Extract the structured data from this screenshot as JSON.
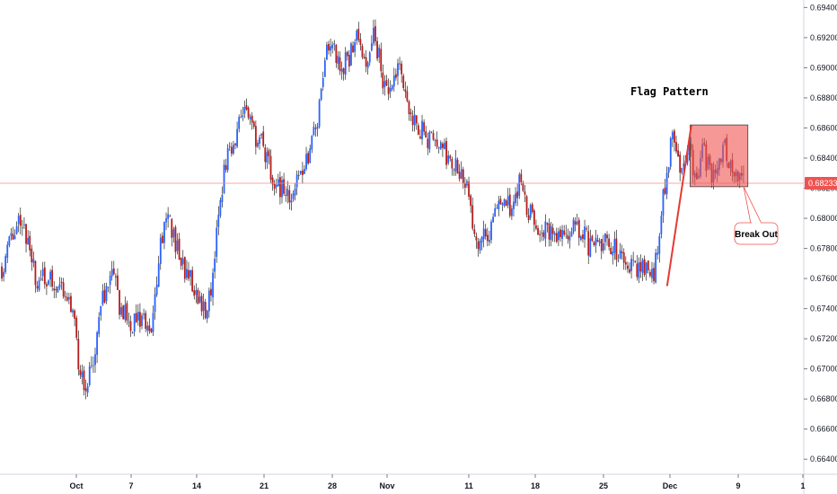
{
  "chart_data": {
    "type": "candlestick",
    "ylim": [
      0.663,
      0.6945
    ],
    "y_ticks": [
      "0.69400",
      "0.69200",
      "0.69000",
      "0.68800",
      "0.68600",
      "0.68400",
      "0.68200",
      "0.68000",
      "0.67800",
      "0.67600",
      "0.67400",
      "0.67200",
      "0.67000",
      "0.66800",
      "0.66600",
      "0.66400"
    ],
    "x_ticks": [
      "Oct",
      "7",
      "14",
      "21",
      "28",
      "Nov",
      "11",
      "18",
      "25",
      "Dec",
      "9",
      "1"
    ],
    "current_price": "0.68233",
    "colors": {
      "up": "#2962ff",
      "down": "#b71c1c",
      "price_line": "#f28b82",
      "price_tag": "#ef5350",
      "flag_fill": "#ef5350",
      "trend_line": "#e53935"
    },
    "trend_path": [
      {
        "t": 0.0,
        "v": 0.6768
      },
      {
        "t": 0.03,
        "v": 0.679
      },
      {
        "t": 0.05,
        "v": 0.6803
      },
      {
        "t": 0.07,
        "v": 0.6782
      },
      {
        "t": 0.09,
        "v": 0.676
      },
      {
        "t": 0.12,
        "v": 0.6758
      },
      {
        "t": 0.16,
        "v": 0.6755
      },
      {
        "t": 0.17,
        "v": 0.6752
      },
      {
        "t": 0.19,
        "v": 0.674
      },
      {
        "t": 0.21,
        "v": 0.6695
      },
      {
        "t": 0.235,
        "v": 0.6692
      },
      {
        "t": 0.27,
        "v": 0.6745
      },
      {
        "t": 0.3,
        "v": 0.6762
      },
      {
        "t": 0.32,
        "v": 0.674
      },
      {
        "t": 0.35,
        "v": 0.673
      },
      {
        "t": 0.37,
        "v": 0.6735
      },
      {
        "t": 0.4,
        "v": 0.672
      },
      {
        "t": 0.42,
        "v": 0.677
      },
      {
        "t": 0.44,
        "v": 0.6805
      },
      {
        "t": 0.46,
        "v": 0.6792
      },
      {
        "t": 0.49,
        "v": 0.6765
      },
      {
        "t": 0.51,
        "v": 0.676
      },
      {
        "t": 0.53,
        "v": 0.6745
      },
      {
        "t": 0.555,
        "v": 0.674
      },
      {
        "t": 0.57,
        "v": 0.677
      },
      {
        "t": 0.585,
        "v": 0.681
      },
      {
        "t": 0.6,
        "v": 0.6835
      },
      {
        "t": 0.63,
        "v": 0.6855
      },
      {
        "t": 0.65,
        "v": 0.6875
      },
      {
        "t": 0.67,
        "v": 0.686
      },
      {
        "t": 0.7,
        "v": 0.6848
      },
      {
        "t": 0.72,
        "v": 0.6835
      },
      {
        "t": 0.745,
        "v": 0.682
      },
      {
        "t": 0.77,
        "v": 0.6815
      },
      {
        "t": 0.79,
        "v": 0.682
      },
      {
        "t": 0.82,
        "v": 0.684
      },
      {
        "t": 0.85,
        "v": 0.6865
      },
      {
        "t": 0.88,
        "v": 0.692
      },
      {
        "t": 0.895,
        "v": 0.6912
      },
      {
        "t": 0.91,
        "v": 0.69
      },
      {
        "t": 0.94,
        "v": 0.691
      },
      {
        "t": 0.96,
        "v": 0.6925
      },
      {
        "t": 0.98,
        "v": 0.6895
      },
      {
        "t": 1.0,
        "v": 0.692
      }
    ],
    "trend_path_2": [
      {
        "t": 0.0,
        "v": 0.692
      },
      {
        "t": 0.03,
        "v": 0.688
      },
      {
        "t": 0.06,
        "v": 0.69
      },
      {
        "t": 0.09,
        "v": 0.6875
      },
      {
        "t": 0.12,
        "v": 0.686
      },
      {
        "t": 0.15,
        "v": 0.685
      },
      {
        "t": 0.18,
        "v": 0.6845
      },
      {
        "t": 0.21,
        "v": 0.6838
      },
      {
        "t": 0.24,
        "v": 0.683
      },
      {
        "t": 0.27,
        "v": 0.679
      },
      {
        "t": 0.29,
        "v": 0.6785
      },
      {
        "t": 0.31,
        "v": 0.679
      },
      {
        "t": 0.33,
        "v": 0.681
      },
      {
        "t": 0.35,
        "v": 0.6815
      },
      {
        "t": 0.37,
        "v": 0.68
      },
      {
        "t": 0.39,
        "v": 0.6825
      },
      {
        "t": 0.41,
        "v": 0.6805
      },
      {
        "t": 0.43,
        "v": 0.68
      },
      {
        "t": 0.46,
        "v": 0.679
      },
      {
        "t": 0.49,
        "v": 0.6792
      },
      {
        "t": 0.52,
        "v": 0.6788
      },
      {
        "t": 0.55,
        "v": 0.6795
      },
      {
        "t": 0.58,
        "v": 0.6782
      },
      {
        "t": 0.61,
        "v": 0.6785
      },
      {
        "t": 0.64,
        "v": 0.678
      },
      {
        "t": 0.67,
        "v": 0.6775
      },
      {
        "t": 0.7,
        "v": 0.6768
      },
      {
        "t": 0.73,
        "v": 0.677
      },
      {
        "t": 0.755,
        "v": 0.6762
      },
      {
        "t": 0.77,
        "v": 0.679
      },
      {
        "t": 0.79,
        "v": 0.683
      },
      {
        "t": 0.81,
        "v": 0.6858
      },
      {
        "t": 0.83,
        "v": 0.6835
      },
      {
        "t": 0.85,
        "v": 0.6848
      },
      {
        "t": 0.87,
        "v": 0.683
      },
      {
        "t": 0.89,
        "v": 0.6845
      },
      {
        "t": 0.91,
        "v": 0.683
      },
      {
        "t": 0.93,
        "v": 0.6835
      },
      {
        "t": 0.95,
        "v": 0.6845
      },
      {
        "t": 0.97,
        "v": 0.6835
      },
      {
        "t": 1.0,
        "v": 0.6826
      }
    ],
    "flag_box": {
      "x_start": 0.8245,
      "x_end": 0.8935,
      "v_top": 0.6862,
      "v_bottom": 0.6821
    },
    "trend_line": {
      "x_start": 0.797,
      "v_start": 0.6755,
      "x_end": 0.826,
      "v_end": 0.6862
    },
    "annotations": {
      "flag_pattern": "Flag Pattern",
      "break_out": "Break Out"
    }
  }
}
